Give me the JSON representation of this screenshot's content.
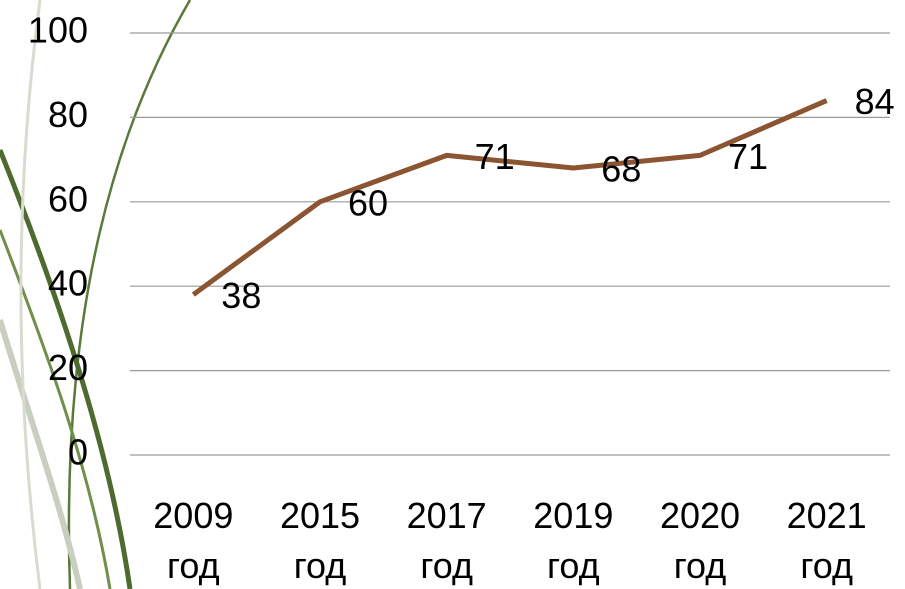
{
  "chart_data": {
    "type": "line",
    "categories": [
      "2009 год",
      "2015 год",
      "2017 год",
      "2019 год",
      "2020 год",
      "2021 год"
    ],
    "values": [
      38,
      60,
      71,
      68,
      71,
      84
    ],
    "color": "#8a5530",
    "ylim": [
      0,
      100
    ],
    "yticks": [
      0,
      20,
      40,
      60,
      80,
      100
    ],
    "grid": true
  }
}
